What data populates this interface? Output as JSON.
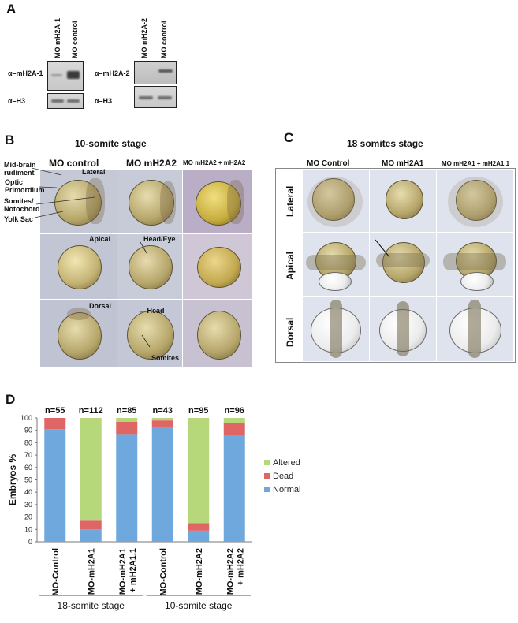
{
  "panelA": {
    "label": "A",
    "blot1": {
      "lane1": "MO mH2A-1",
      "lane2": "MO control",
      "row1": "α–mH2A-1",
      "row2": "α–H3"
    },
    "blot2": {
      "lane1": "MO mH2A-2",
      "lane2": "MO control",
      "row1": "α–mH2A-2",
      "row2": "α–H3"
    }
  },
  "panelB": {
    "label": "B",
    "title": "10-somite stage",
    "col1": "MO control",
    "col2": "MO mH2A2",
    "col3": "MO mH2A2 + mH2A2",
    "side_labels": [
      "Mid-brain rudiment",
      "Optic Primordium",
      "Somites/ Notochord",
      "Yolk Sac"
    ],
    "view_lateral": "Lateral",
    "view_apical": "Apical",
    "view_dorsal": "Dorsal",
    "ann_headeye": "Head/Eye",
    "ann_head": "Head",
    "ann_somites": "Somites"
  },
  "panelC": {
    "label": "C",
    "title": "18 somites stage",
    "col1": "MO Control",
    "col2": "MO mH2A1",
    "col3": "MO mH2A1 + mH2A1.1",
    "rows": [
      "Lateral",
      "Apical",
      "Dorsal"
    ]
  },
  "panelD": {
    "label": "D"
  },
  "chart_data": {
    "type": "bar",
    "stacked": true,
    "ylabel": "Embryos %",
    "ylim": [
      0,
      100
    ],
    "yticks": [
      0,
      10,
      20,
      30,
      40,
      50,
      60,
      70,
      80,
      90,
      100
    ],
    "categories": [
      "MO-Control",
      "MO-mH2A1",
      "MO-mH2A1 + mH2A1.1",
      "MO-Control",
      "MO-mH2A2",
      "MO-mH2A2 + mH2A2"
    ],
    "n_labels": [
      "n=55",
      "n=112",
      "n=85",
      "n=43",
      "n=95",
      "n=96"
    ],
    "groups": [
      {
        "label": "18-somite stage",
        "categories": [
          0,
          1,
          2
        ]
      },
      {
        "label": "10-somite stage",
        "categories": [
          3,
          4,
          5
        ]
      }
    ],
    "series": [
      {
        "name": "Normal",
        "color": "#6fa8dc",
        "values": [
          91,
          10,
          87,
          93,
          9,
          86
        ]
      },
      {
        "name": "Dead",
        "color": "#e06666",
        "values": [
          9,
          7,
          10,
          5,
          6,
          10
        ]
      },
      {
        "name": "Altered",
        "color": "#b6d77a",
        "values": [
          0,
          83,
          3,
          2,
          85,
          4
        ]
      }
    ],
    "legend": [
      "Altered",
      "Dead",
      "Normal"
    ],
    "legend_position": "right"
  }
}
